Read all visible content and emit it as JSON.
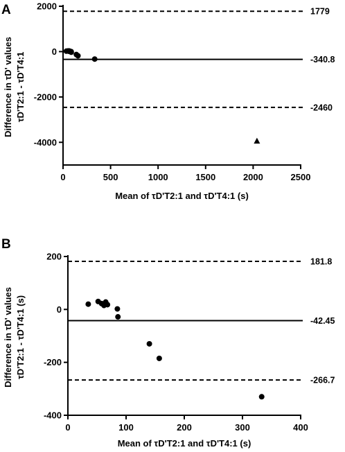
{
  "chart_data": [
    {
      "panel": "A",
      "type": "scatter",
      "xlabel": "Mean of τD'T2:1 and τD'T4:1 (s)",
      "ylabel": [
        "Difference in τD' values",
        "τD'T2:1 - τD'T4:1"
      ],
      "xlim": [
        0,
        2500
      ],
      "ylim": [
        -5000,
        2000
      ],
      "xticks": [
        0,
        500,
        1000,
        1500,
        2000,
        2500
      ],
      "yticks": [
        2000,
        0,
        -2000,
        -4000
      ],
      "xtick_labels": [
        "0",
        "500",
        "1000",
        "1500",
        "2000",
        "2500"
      ],
      "ytick_labels": [
        "2000",
        "0",
        "-2000",
        "-4000"
      ],
      "grid": false,
      "reference_lines": [
        {
          "value": 1779,
          "label": "1779",
          "style": "dashed"
        },
        {
          "value": -340.8,
          "label": "-340.8",
          "style": "solid"
        },
        {
          "value": -2460,
          "label": "-2460",
          "style": "dashed"
        }
      ],
      "points": [
        {
          "x": 35,
          "y": 20,
          "marker": "circle"
        },
        {
          "x": 52,
          "y": 30,
          "marker": "circle"
        },
        {
          "x": 58,
          "y": 22,
          "marker": "circle"
        },
        {
          "x": 62,
          "y": 15,
          "marker": "circle"
        },
        {
          "x": 65,
          "y": 28,
          "marker": "circle"
        },
        {
          "x": 68,
          "y": 18,
          "marker": "circle"
        },
        {
          "x": 85,
          "y": 2,
          "marker": "circle"
        },
        {
          "x": 86,
          "y": -28,
          "marker": "circle"
        },
        {
          "x": 140,
          "y": -130,
          "marker": "circle"
        },
        {
          "x": 157,
          "y": -185,
          "marker": "circle"
        },
        {
          "x": 333,
          "y": -330,
          "marker": "circle"
        },
        {
          "x": 2040,
          "y": -3950,
          "marker": "triangle"
        }
      ]
    },
    {
      "panel": "B",
      "type": "scatter",
      "xlabel": "Mean of τD'T2:1 and τD'T4:1 (s)",
      "ylabel": [
        "Difference in τD' values",
        "τD'T2:1 - τD'T4:1 (s)"
      ],
      "xlim": [
        0,
        400
      ],
      "ylim": [
        -400,
        200
      ],
      "xticks": [
        0,
        100,
        200,
        300,
        400
      ],
      "yticks": [
        200,
        0,
        -200,
        -400
      ],
      "xtick_labels": [
        "0",
        "100",
        "200",
        "300",
        "400"
      ],
      "ytick_labels": [
        "200",
        "0",
        "-200",
        "-400"
      ],
      "grid": false,
      "reference_lines": [
        {
          "value": 181.8,
          "label": "181.8",
          "style": "dashed"
        },
        {
          "value": -42.45,
          "label": "-42.45",
          "style": "solid"
        },
        {
          "value": -266.7,
          "label": "-266.7",
          "style": "dashed"
        }
      ],
      "points": [
        {
          "x": 35,
          "y": 20,
          "marker": "circle"
        },
        {
          "x": 52,
          "y": 30,
          "marker": "circle"
        },
        {
          "x": 58,
          "y": 22,
          "marker": "circle"
        },
        {
          "x": 62,
          "y": 15,
          "marker": "circle"
        },
        {
          "x": 65,
          "y": 28,
          "marker": "circle"
        },
        {
          "x": 68,
          "y": 18,
          "marker": "circle"
        },
        {
          "x": 85,
          "y": 2,
          "marker": "circle"
        },
        {
          "x": 86,
          "y": -28,
          "marker": "circle"
        },
        {
          "x": 140,
          "y": -130,
          "marker": "circle"
        },
        {
          "x": 157,
          "y": -185,
          "marker": "circle"
        },
        {
          "x": 333,
          "y": -330,
          "marker": "circle"
        }
      ]
    }
  ]
}
